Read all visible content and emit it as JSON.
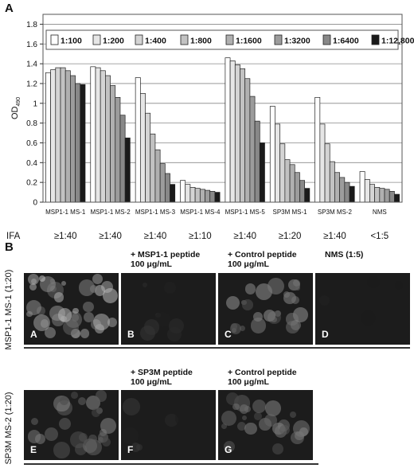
{
  "panel_a_letter": "A",
  "panel_b_letter": "B",
  "chart_data": {
    "type": "bar",
    "ylabel": "OD490",
    "ylim": [
      0,
      1.9
    ],
    "yticks": [
      0,
      0.2,
      0.4,
      0.6,
      0.8,
      1,
      1.2,
      1.4,
      1.6,
      1.8
    ],
    "ytick_labels": [
      "0",
      "0.2",
      "0.4",
      "0.6",
      "0.8",
      "1",
      "1.2",
      "1.4",
      "1.6",
      "1.8"
    ],
    "grid": "horizontal",
    "legend_position": "top",
    "categories": [
      "MSP1-1 MS-1",
      "MSP1-1 MS-2",
      "MSP1-1 MS-3",
      "MSP1-1 MS-4",
      "MSP1-1 MS-5",
      "SP3M MS-1",
      "SP3M MS-2",
      "NMS"
    ],
    "series": [
      {
        "name": "1:100",
        "color": "#ffffff",
        "values": [
          1.31,
          1.37,
          1.26,
          0.22,
          1.46,
          0.97,
          1.06,
          0.31
        ]
      },
      {
        "name": "1:200",
        "color": "#e6e6e6",
        "values": [
          1.34,
          1.36,
          1.1,
          0.18,
          1.43,
          0.79,
          0.79,
          0.23
        ]
      },
      {
        "name": "1:400",
        "color": "#d4d4d4",
        "values": [
          1.36,
          1.33,
          0.9,
          0.15,
          1.39,
          0.59,
          0.59,
          0.18
        ]
      },
      {
        "name": "1:800",
        "color": "#c2c2c2",
        "values": [
          1.36,
          1.28,
          0.69,
          0.14,
          1.35,
          0.43,
          0.41,
          0.15
        ]
      },
      {
        "name": "1:1600",
        "color": "#b0b0b0",
        "values": [
          1.33,
          1.18,
          0.53,
          0.13,
          1.25,
          0.38,
          0.3,
          0.14
        ]
      },
      {
        "name": "1:3200",
        "color": "#9c9c9c",
        "values": [
          1.28,
          1.06,
          0.39,
          0.12,
          1.07,
          0.3,
          0.25,
          0.13
        ]
      },
      {
        "name": "1:6400",
        "color": "#888888",
        "values": [
          1.2,
          0.88,
          0.29,
          0.11,
          0.82,
          0.22,
          0.2,
          0.11
        ]
      },
      {
        "name": "1:12,800",
        "color": "#1a1a1a",
        "values": [
          1.19,
          0.65,
          0.18,
          0.1,
          0.6,
          0.14,
          0.16,
          0.08
        ]
      }
    ],
    "row_title": "IFA",
    "ifa_titers": [
      "≥1:40",
      "≥1:40",
      "≥1:40",
      "≥1:10",
      "≥1:40",
      "≥1:20",
      "≥1:40",
      "<1:5"
    ]
  },
  "panel_b": {
    "row1_label": "MSP1-1 MS-1 (1:20)",
    "row2_label": "SP3M MS-2 (1:20)",
    "row1_headers": [
      {
        "line1": "",
        "line2": ""
      },
      {
        "line1": "+ MSP1-1 peptide",
        "line2": "100 μg/mL"
      },
      {
        "line1": "+ Control peptide",
        "line2": "100 μg/mL"
      },
      {
        "line1": "NMS (1:5)",
        "line2": ""
      }
    ],
    "row2_headers": [
      {
        "line1": "",
        "line2": ""
      },
      {
        "line1": "+ SP3M peptide",
        "line2": "100 μg/mL"
      },
      {
        "line1": "+ Control peptide",
        "line2": "100 μg/mL"
      }
    ],
    "row1_letters": [
      "A",
      "B",
      "C",
      "D"
    ],
    "row2_letters": [
      "E",
      "F",
      "G"
    ]
  }
}
